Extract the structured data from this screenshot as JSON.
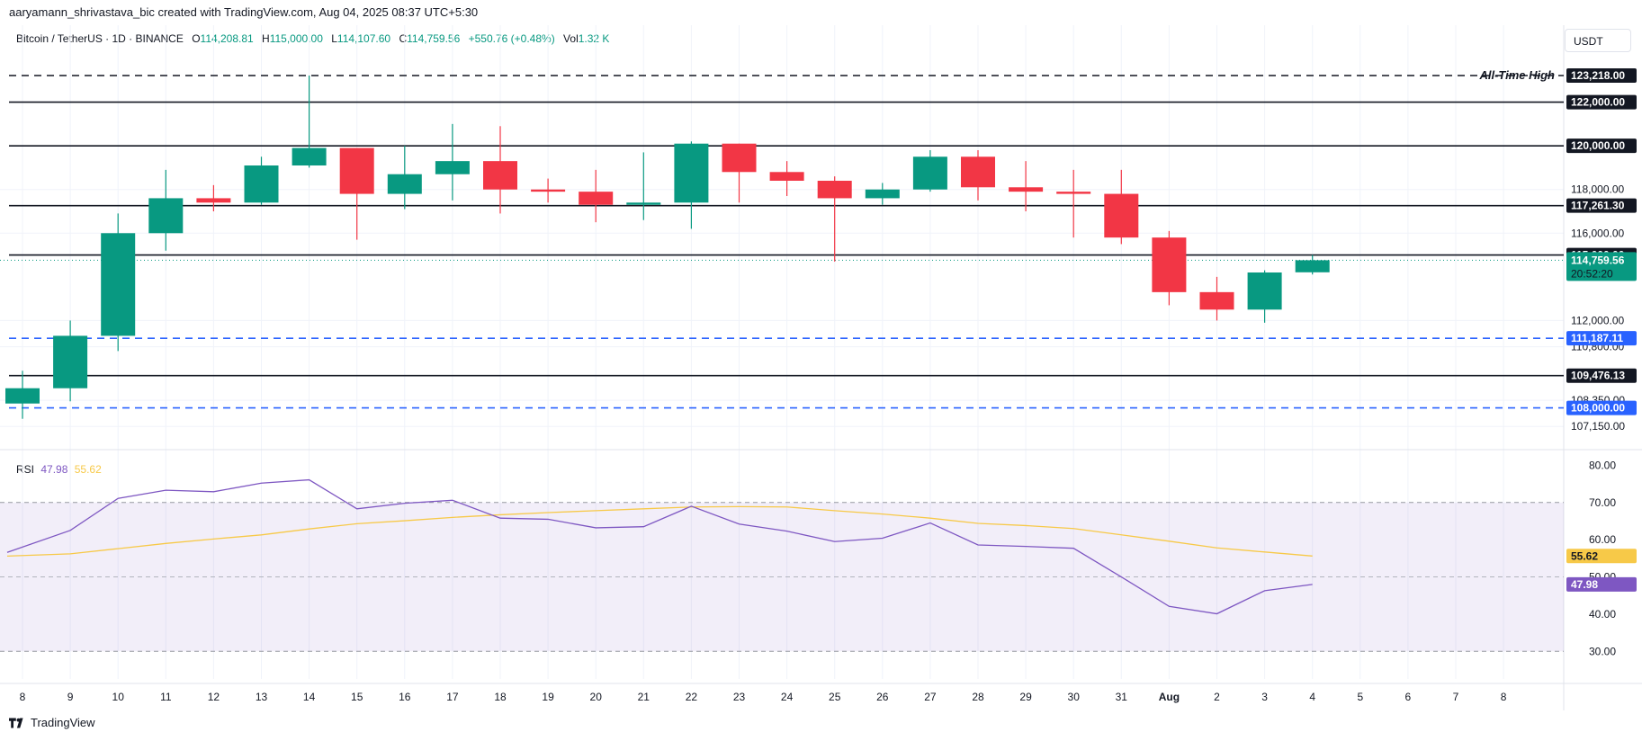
{
  "header": {
    "attribution": "aaryamann_shrivastava_bic created with TradingView.com, Aug 04, 2025 08:37 UTC+5:30",
    "symbol": "Bitcoin / TetherUS · 1D · BINANCE",
    "ohlc": {
      "o_label": "O",
      "o": "114,208.81",
      "h_label": "H",
      "h": "115,000.00",
      "l_label": "L",
      "l": "114,107.60",
      "c_label": "C",
      "c": "114,759.56",
      "change": "+550.76 (+0.48%)",
      "vol_label": "Vol",
      "vol": "1.32 K"
    },
    "unit": "USDT"
  },
  "rsi_legend": {
    "name": "RSI",
    "rsi": "47.98",
    "ma": "55.62"
  },
  "brand": {
    "name": "TradingView"
  },
  "colors": {
    "up": "#089981",
    "down": "#f23645",
    "rsi": "#7e57c2",
    "rsi_ma": "#f7c948",
    "support": "#2962ff"
  },
  "chart_data": [
    {
      "type": "candlestick",
      "y_axis": {
        "ylim": [
          106500,
          124000
        ],
        "ticks": [
          "118,000.00",
          "116,000.00",
          "112,000.00",
          "110,800.00",
          "108,350.00",
          "107,150.00"
        ],
        "tick_values": [
          118000,
          116000,
          112000,
          110800,
          108350,
          107150
        ]
      },
      "x_axis": {
        "labels": [
          "8",
          "9",
          "10",
          "11",
          "12",
          "13",
          "14",
          "15",
          "16",
          "17",
          "18",
          "19",
          "20",
          "21",
          "22",
          "23",
          "24",
          "25",
          "26",
          "27",
          "28",
          "29",
          "30",
          "31",
          "Aug",
          "2",
          "3",
          "4",
          "5",
          "6",
          "7",
          "8"
        ]
      },
      "candles": [
        {
          "date": "Jul 8",
          "o": 108200,
          "h": 109700,
          "l": 107500,
          "c": 108900
        },
        {
          "date": "Jul 9",
          "o": 108900,
          "h": 112000,
          "l": 108300,
          "c": 111300
        },
        {
          "date": "Jul 10",
          "o": 111300,
          "h": 116900,
          "l": 110600,
          "c": 116000
        },
        {
          "date": "Jul 11",
          "o": 116000,
          "h": 118900,
          "l": 115200,
          "c": 117600
        },
        {
          "date": "Jul 12",
          "o": 117600,
          "h": 118200,
          "l": 117000,
          "c": 117400
        },
        {
          "date": "Jul 13",
          "o": 117400,
          "h": 119500,
          "l": 117300,
          "c": 119100
        },
        {
          "date": "Jul 14",
          "o": 119100,
          "h": 123218,
          "l": 119000,
          "c": 119900
        },
        {
          "date": "Jul 15",
          "o": 119900,
          "h": 119900,
          "l": 115700,
          "c": 117800
        },
        {
          "date": "Jul 16",
          "o": 117800,
          "h": 120000,
          "l": 117100,
          "c": 118700
        },
        {
          "date": "Jul 17",
          "o": 118700,
          "h": 121000,
          "l": 117500,
          "c": 119300
        },
        {
          "date": "Jul 18",
          "o": 119300,
          "h": 120900,
          "l": 116900,
          "c": 118000
        },
        {
          "date": "Jul 19",
          "o": 118000,
          "h": 118500,
          "l": 117400,
          "c": 117900
        },
        {
          "date": "Jul 20",
          "o": 117900,
          "h": 118900,
          "l": 116500,
          "c": 117300
        },
        {
          "date": "Jul 21",
          "o": 117300,
          "h": 119700,
          "l": 116600,
          "c": 117400
        },
        {
          "date": "Jul 22",
          "o": 117400,
          "h": 120200,
          "l": 116200,
          "c": 120100
        },
        {
          "date": "Jul 23",
          "o": 120100,
          "h": 120100,
          "l": 117400,
          "c": 118800
        },
        {
          "date": "Jul 24",
          "o": 118800,
          "h": 119300,
          "l": 117700,
          "c": 118400
        },
        {
          "date": "Jul 25",
          "o": 118400,
          "h": 118600,
          "l": 114700,
          "c": 117600
        },
        {
          "date": "Jul 26",
          "o": 117600,
          "h": 118300,
          "l": 117300,
          "c": 118000
        },
        {
          "date": "Jul 27",
          "o": 118000,
          "h": 119800,
          "l": 117900,
          "c": 119500
        },
        {
          "date": "Jul 28",
          "o": 119500,
          "h": 119800,
          "l": 117500,
          "c": 118100
        },
        {
          "date": "Jul 29",
          "o": 118100,
          "h": 119300,
          "l": 117000,
          "c": 117900
        },
        {
          "date": "Jul 30",
          "o": 117900,
          "h": 118900,
          "l": 115800,
          "c": 117800
        },
        {
          "date": "Jul 31",
          "o": 117800,
          "h": 118900,
          "l": 115500,
          "c": 115800
        },
        {
          "date": "Aug 1",
          "o": 115800,
          "h": 116100,
          "l": 112700,
          "c": 113300
        },
        {
          "date": "Aug 2",
          "o": 113300,
          "h": 114000,
          "l": 112000,
          "c": 112500
        },
        {
          "date": "Aug 3",
          "o": 112500,
          "h": 114300,
          "l": 111900,
          "c": 114200
        },
        {
          "date": "Aug 4",
          "o": 114208.81,
          "h": 115000,
          "l": 114107.6,
          "c": 114759.56
        }
      ],
      "levels": [
        {
          "value": 123218,
          "label": "123,218.00",
          "style": "dashed",
          "color": "#131722",
          "annotation": "All-Time High"
        },
        {
          "value": 122000,
          "label": "122,000.00",
          "style": "solid",
          "color": "#131722"
        },
        {
          "value": 120000,
          "label": "120,000.00",
          "style": "solid",
          "color": "#131722"
        },
        {
          "value": 117261.3,
          "label": "117,261.30",
          "style": "solid",
          "color": "#131722"
        },
        {
          "value": 115000,
          "label": "115,000.00",
          "style": "solid",
          "color": "#131722"
        },
        {
          "value": 111187.11,
          "label": "111,187.11",
          "style": "dashed",
          "color": "#2962ff"
        },
        {
          "value": 109476.13,
          "label": "109,476.13",
          "style": "solid",
          "color": "#131722"
        },
        {
          "value": 108000,
          "label": "108,000.00",
          "style": "dashed",
          "color": "#2962ff"
        }
      ],
      "last_price": {
        "value": 114759.56,
        "label": "114,759.56",
        "countdown": "20:52:20"
      }
    },
    {
      "type": "line",
      "name": "RSI",
      "ylim": [
        25,
        83
      ],
      "ticks": [
        "80.00",
        "70.00",
        "60.00",
        "50.00",
        "40.00",
        "30.00"
      ],
      "tick_values": [
        80,
        70,
        60,
        50,
        40,
        30
      ],
      "band": [
        30,
        70
      ],
      "midline": 50,
      "series": [
        {
          "name": "RSI",
          "values": [
            56.6,
            62.5,
            71.1,
            73.3,
            72.9,
            75.2,
            76.1,
            68.3,
            69.8,
            70.6,
            65.8,
            65.5,
            63.2,
            63.5,
            69.0,
            64.2,
            62.3,
            59.5,
            60.4,
            64.5,
            58.6,
            58.2,
            57.7,
            50.0,
            42.1,
            40.1,
            46.3,
            47.98
          ]
        },
        {
          "name": "RSI-based MA",
          "values": [
            55.6,
            56.2,
            57.6,
            59.0,
            60.2,
            61.3,
            62.9,
            64.3,
            65.1,
            66.0,
            66.7,
            67.3,
            67.8,
            68.3,
            68.8,
            68.9,
            68.8,
            67.8,
            66.9,
            65.8,
            64.4,
            63.8,
            63.0,
            61.3,
            59.6,
            57.8,
            56.7,
            55.62
          ]
        }
      ],
      "labels": {
        "rsi": "47.98",
        "ma": "55.62"
      }
    }
  ]
}
